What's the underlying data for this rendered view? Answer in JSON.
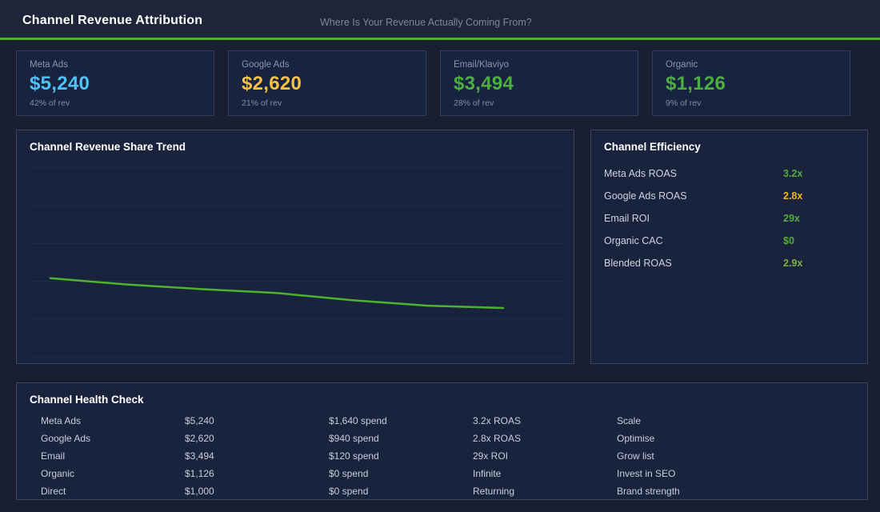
{
  "header": {
    "title": "Channel Revenue Attribution",
    "subtitle": "Where Is Your Revenue Actually Coming From?",
    "accent_color": "#4caf2e"
  },
  "kpi_cards": [
    {
      "label": "Meta Ads",
      "value": "$5,240",
      "sub": "42% of rev",
      "color": "#4fc3f7"
    },
    {
      "label": "Google Ads",
      "value": "$2,620",
      "sub": "21% of rev",
      "color": "#f5c242"
    },
    {
      "label": "Email/Klaviyo",
      "value": "$3,494",
      "sub": "28% of rev",
      "color": "#4caf3f"
    },
    {
      "label": "Organic",
      "value": "$1,126",
      "sub": "9% of rev",
      "color": "#4caf3f"
    }
  ],
  "chart_panel": {
    "title": "Channel Revenue Share Trend"
  },
  "chart_data": {
    "type": "line",
    "title": "Channel Revenue Share Trend",
    "x": [
      "1",
      "2",
      "3",
      "4",
      "5",
      "6",
      "7"
    ],
    "series": [
      {
        "name": "Revenue share",
        "values": [
          42.0,
          41.2,
          40.6,
          40.1,
          39.2,
          38.5,
          38.2
        ]
      }
    ],
    "ylim": [
      32,
      56
    ],
    "xlabel": "",
    "ylabel": "",
    "grid": true,
    "legend_position": "none",
    "line_color": "#4db32e",
    "grid_color": "#232d49"
  },
  "efficiency": {
    "title": "Channel Efficiency",
    "rows": [
      {
        "label": "Meta Ads ROAS",
        "value": "3.2x",
        "color": "#56ab3d"
      },
      {
        "label": "Google Ads ROAS",
        "value": "2.8x",
        "color": "#f0b429"
      },
      {
        "label": "Email ROI",
        "value": "29x",
        "color": "#56ab3d"
      },
      {
        "label": "Organic CAC",
        "value": "$0",
        "color": "#56ab3d"
      },
      {
        "label": "Blended ROAS",
        "value": "2.9x",
        "color": "#7cb342"
      }
    ]
  },
  "health": {
    "title": "Channel Health Check",
    "rows": [
      {
        "channel": "Meta Ads",
        "revenue": "$5,240",
        "spend": "$1,640 spend",
        "efficiency": "3.2x ROAS",
        "action": "Scale"
      },
      {
        "channel": "Google Ads",
        "revenue": "$2,620",
        "spend": "$940 spend",
        "efficiency": "2.8x ROAS",
        "action": "Optimise"
      },
      {
        "channel": "Email",
        "revenue": "$3,494",
        "spend": "$120 spend",
        "efficiency": "29x ROI",
        "action": "Grow list"
      },
      {
        "channel": "Organic",
        "revenue": "$1,126",
        "spend": "$0 spend",
        "efficiency": "Infinite",
        "action": "Invest in SEO"
      },
      {
        "channel": "Direct",
        "revenue": "$1,000",
        "spend": "$0 spend",
        "efficiency": "Returning",
        "action": "Brand strength"
      }
    ]
  }
}
